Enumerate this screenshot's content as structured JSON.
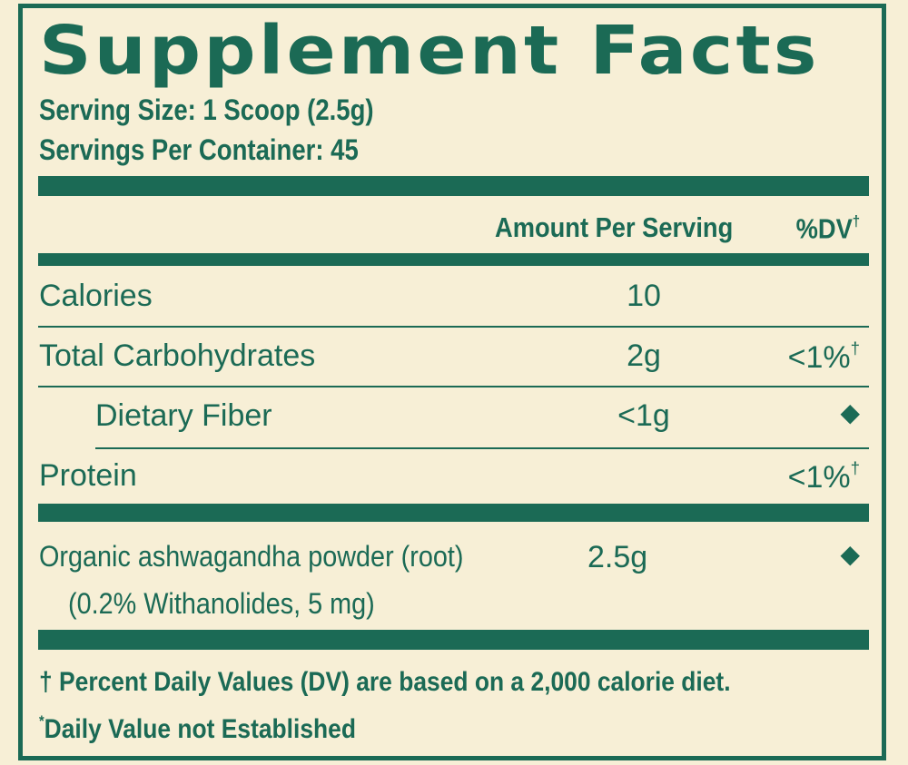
{
  "title": "Supplement Facts",
  "serving_size": "Serving Size: 1 Scoop (2.5g)",
  "servings_per_container": "Servings Per Container: 45",
  "header": {
    "amount": "Amount Per Serving",
    "dv": "%DV",
    "dv_mark": "†"
  },
  "rows": [
    {
      "name": "Calories",
      "amount": "10"
    },
    {
      "name": "Total Carbohydrates",
      "amount": "2g",
      "dv": "<1%",
      "dv_mark": "†"
    },
    {
      "name": "Dietary Fiber",
      "amount": "<1g",
      "dv": "◆"
    },
    {
      "name": "Protein",
      "dv": "<1%",
      "dv_mark": "†"
    }
  ],
  "ingredient": {
    "name": "Organic ashwagandha powder (root)",
    "detail": "(0.2% Withanolides, 5 mg)",
    "amount": "2.5g",
    "dv": "◆"
  },
  "footnotes": [
    {
      "symbol": "†",
      "text": "Percent Daily Values (DV) are based on a 2,000 calorie diet."
    },
    {
      "symbol": "*",
      "text": "Daily Value not Established"
    }
  ]
}
